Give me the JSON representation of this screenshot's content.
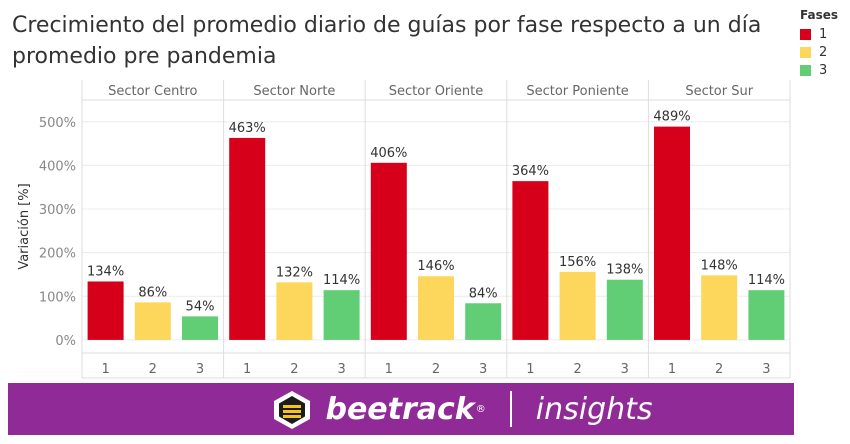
{
  "title": "Crecimiento del promedio diario de guías por fase respecto a un día promedio pre pandemia",
  "legend": {
    "title": "Fases",
    "items": [
      {
        "label": "1",
        "color": "#d7001b"
      },
      {
        "label": "2",
        "color": "#fcd75c"
      },
      {
        "label": "3",
        "color": "#61cd75"
      }
    ]
  },
  "banner": {
    "brand": "beetrack",
    "registered": "®",
    "product": "insights",
    "background": "#8f2a96"
  },
  "chart_data": {
    "type": "bar",
    "title": "Crecimiento del promedio diario de guías por fase respecto a un día promedio pre pandemia",
    "ylabel": "Variación [%]",
    "xlabel": "",
    "ylim": [
      -30,
      550
    ],
    "yticks": [
      0,
      100,
      200,
      300,
      400,
      500
    ],
    "ytick_labels": [
      "0%",
      "100%",
      "200%",
      "300%",
      "400%",
      "500%"
    ],
    "grid": true,
    "legend_position": "top-right",
    "series_colors": {
      "1": "#d7001b",
      "2": "#fcd75c",
      "3": "#61cd75"
    },
    "panels": [
      {
        "name": "Sector Centro",
        "categories": [
          "1",
          "2",
          "3"
        ],
        "values": [
          134,
          86,
          54
        ],
        "labels": [
          "134%",
          "86%",
          "54%"
        ]
      },
      {
        "name": "Sector Norte",
        "categories": [
          "1",
          "2",
          "3"
        ],
        "values": [
          463,
          132,
          114
        ],
        "labels": [
          "463%",
          "132%",
          "114%"
        ]
      },
      {
        "name": "Sector Oriente",
        "categories": [
          "1",
          "2",
          "3"
        ],
        "values": [
          406,
          146,
          84
        ],
        "labels": [
          "406%",
          "146%",
          "84%"
        ]
      },
      {
        "name": "Sector Poniente",
        "categories": [
          "1",
          "2",
          "3"
        ],
        "values": [
          364,
          156,
          138
        ],
        "labels": [
          "364%",
          "156%",
          "138%"
        ]
      },
      {
        "name": "Sector Sur",
        "categories": [
          "1",
          "2",
          "3"
        ],
        "values": [
          489,
          148,
          114
        ],
        "labels": [
          "489%",
          "148%",
          "114%"
        ]
      }
    ]
  }
}
